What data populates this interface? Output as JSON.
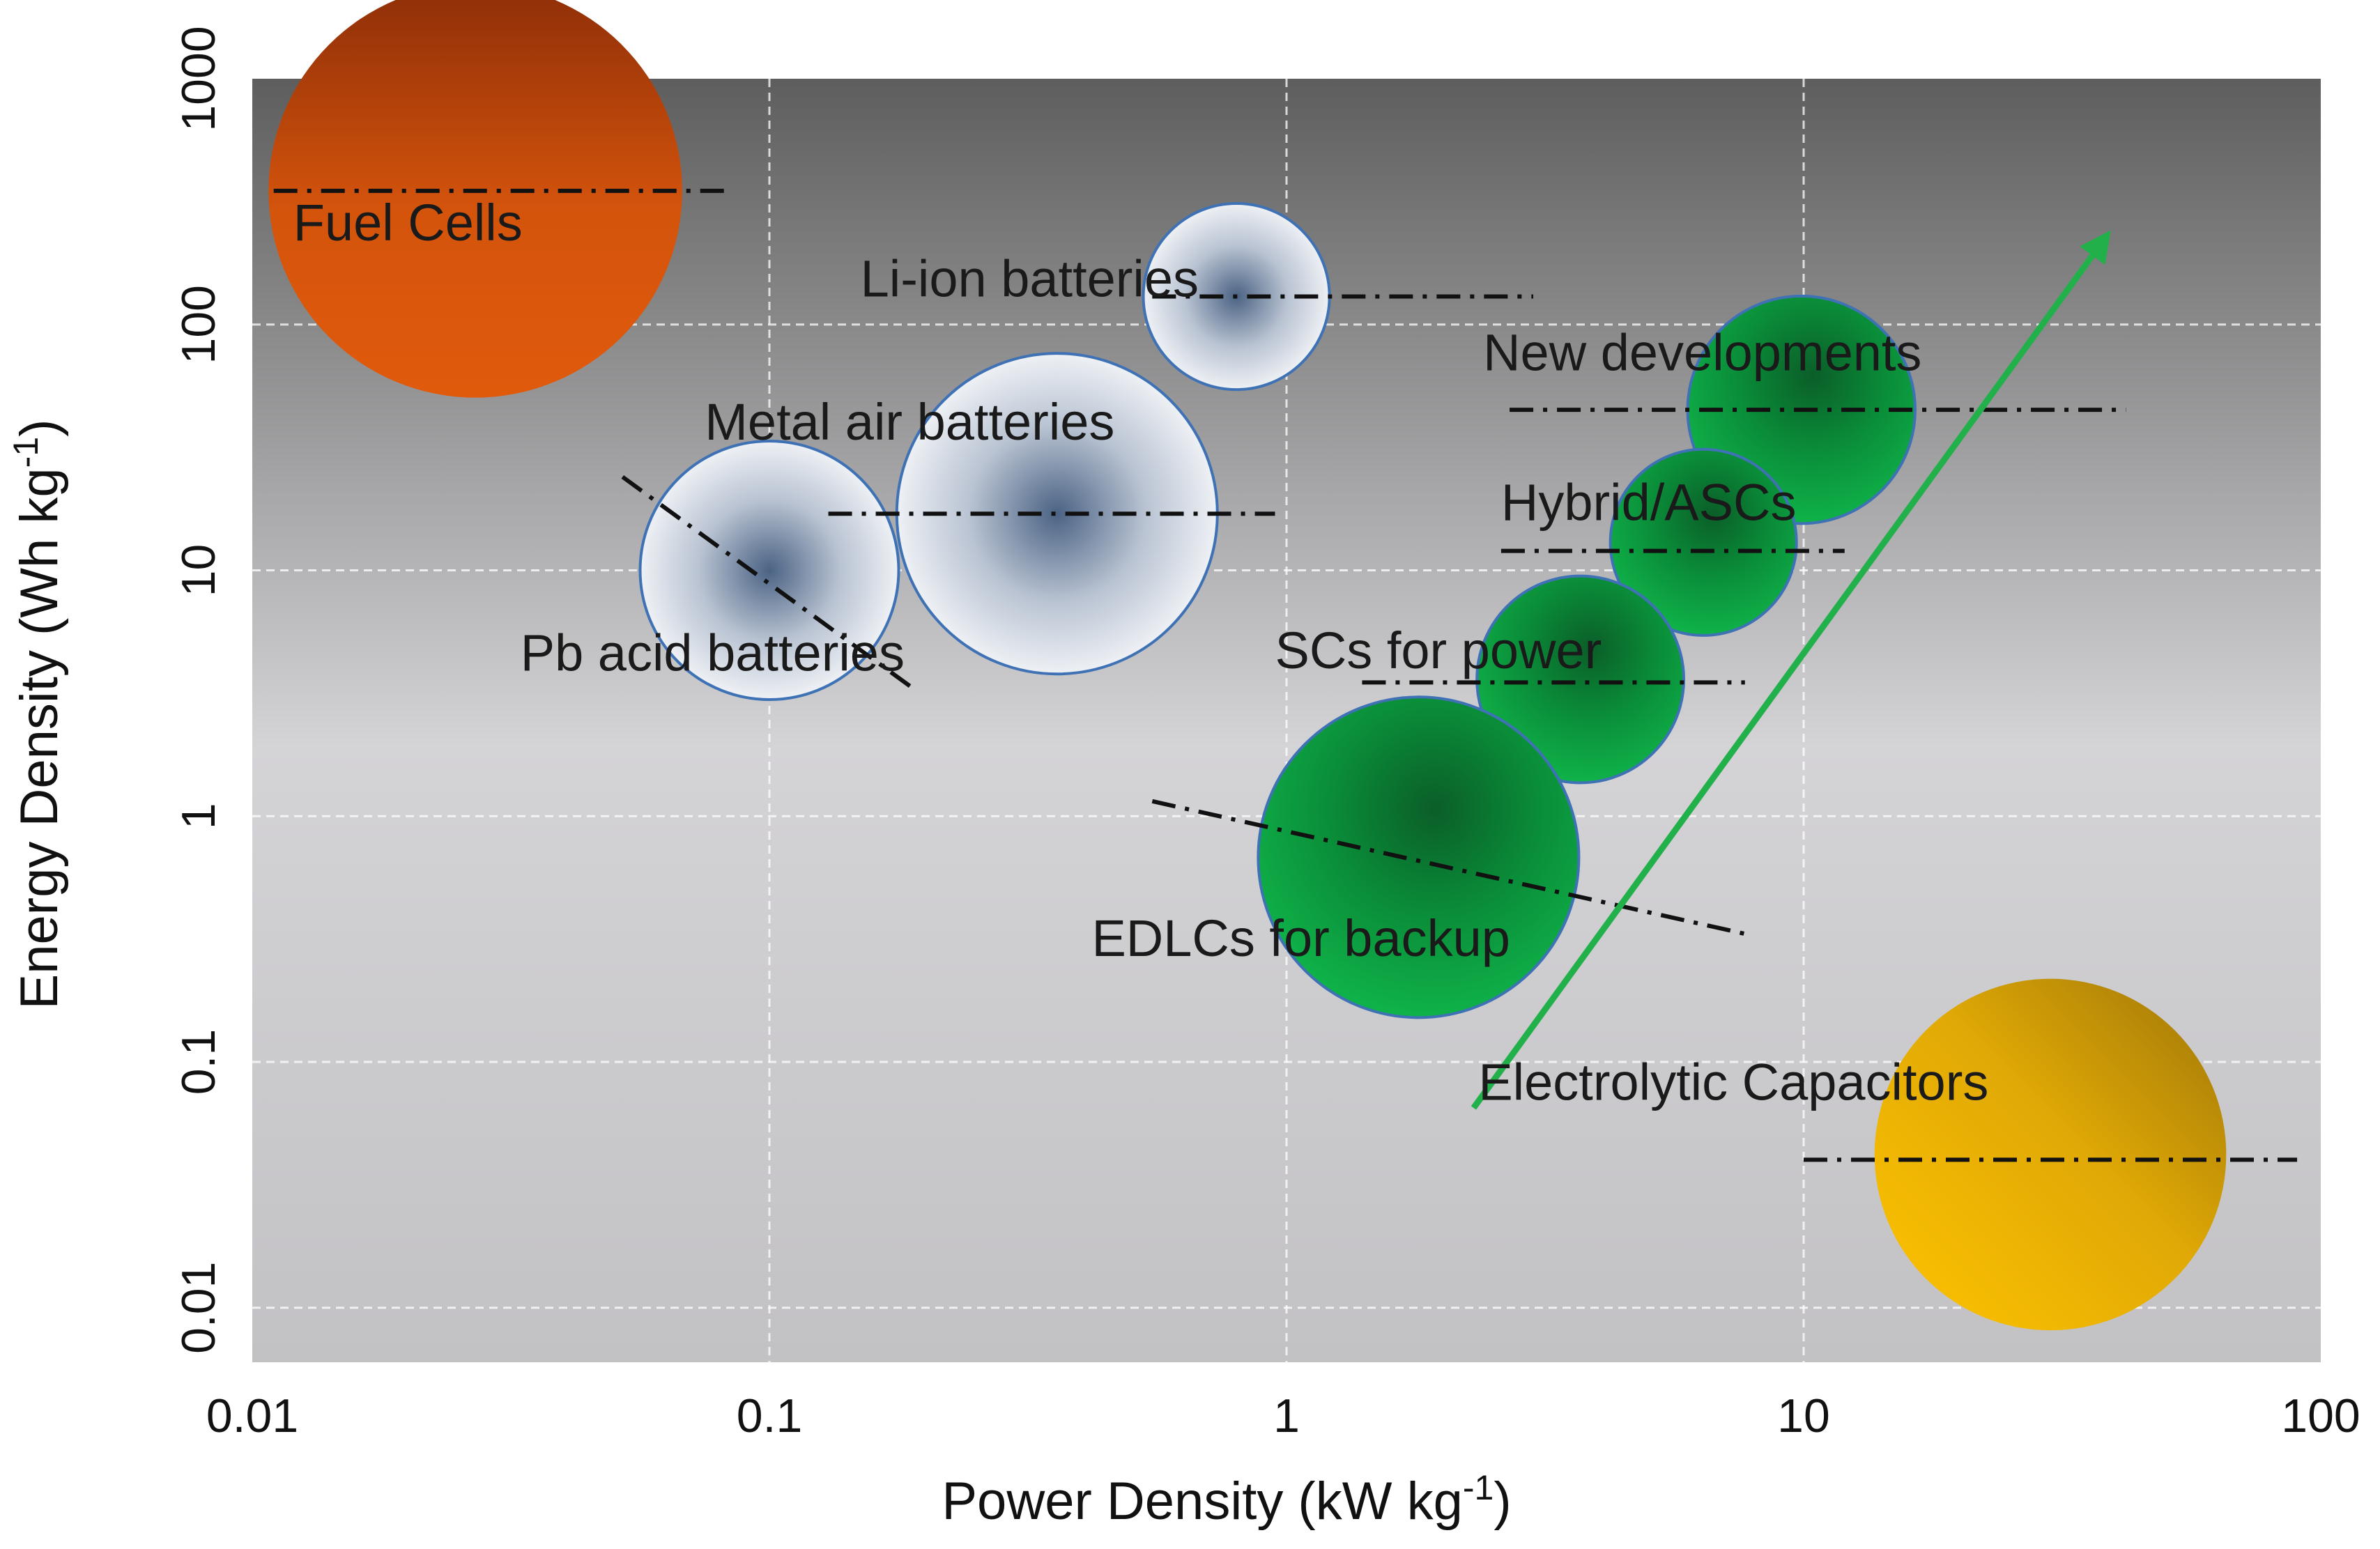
{
  "chart_data": {
    "type": "scatter",
    "title": "",
    "xlabel": "Power Density (kW kg",
    "xlabel_sup": "-1",
    "xlabel_end": ")",
    "ylabel": "Energy Density (Wh kg",
    "ylabel_sup": "-1",
    "ylabel_end": ")",
    "xscale": "log",
    "yscale": "log",
    "xlim": [
      0.01,
      100
    ],
    "ylim": [
      0.006,
      1000
    ],
    "grid": true,
    "x_ticks": [
      0.01,
      0.1,
      1,
      10,
      100
    ],
    "x_tick_labels": [
      "0.01",
      "0.1",
      "1",
      "10",
      "100"
    ],
    "y_ticks": [
      0.01,
      0.1,
      1,
      10,
      100,
      1000
    ],
    "y_tick_labels": [
      "0.01",
      "0.1",
      "1",
      "10",
      "100",
      "1000"
    ],
    "regions": [
      {
        "label": "Fuel Cells",
        "x": 0.027,
        "y": 350,
        "log_radius": 0.4,
        "color": "#cc4a0a",
        "style": "solid",
        "label_x": 0.012,
        "label_y": 220,
        "line": [
          [
            0.011,
            350
          ],
          [
            0.085,
            350
          ]
        ]
      },
      {
        "label": "Li-ion batteries",
        "x": 0.8,
        "y": 130,
        "log_radius": 0.18,
        "color": "#dde2ea",
        "style": "radial",
        "label_x": 0.15,
        "label_y": 130,
        "line": [
          [
            0.55,
            130
          ],
          [
            3.0,
            130
          ]
        ]
      },
      {
        "label": "Metal air batteries",
        "x": 0.36,
        "y": 17,
        "log_radius": 0.31,
        "color": "#dde2ea",
        "style": "radial",
        "label_x": 0.075,
        "label_y": 34,
        "line": [
          [
            0.13,
            17
          ],
          [
            0.95,
            17
          ]
        ]
      },
      {
        "label": "Pb acid batteries",
        "x": 0.1,
        "y": 10,
        "log_radius": 0.25,
        "color": "#dde2ea",
        "style": "radial",
        "label_x": 0.033,
        "label_y": 3.9,
        "line": [
          [
            0.052,
            24
          ],
          [
            0.19,
            3.3
          ]
        ]
      },
      {
        "label": "New developments",
        "x": 9.9,
        "y": 45,
        "log_radius": 0.22,
        "color": "#0aa642",
        "style": "green",
        "label_x": 2.4,
        "label_y": 65,
        "line": [
          [
            2.7,
            45
          ],
          [
            42,
            45
          ]
        ]
      },
      {
        "label": "Hybrid/ASCs",
        "x": 6.4,
        "y": 13,
        "log_radius": 0.18,
        "color": "#0aa642",
        "style": "green",
        "label_x": 2.6,
        "label_y": 16,
        "line": [
          [
            2.6,
            12
          ],
          [
            12,
            12
          ]
        ]
      },
      {
        "label": "SCs for power",
        "x": 3.7,
        "y": 3.6,
        "log_radius": 0.2,
        "color": "#0aa642",
        "style": "green",
        "label_x": 0.95,
        "label_y": 4.0,
        "line": [
          [
            1.4,
            3.5
          ],
          [
            7.7,
            3.5
          ]
        ]
      },
      {
        "label": "EDLCs for backup",
        "x": 1.8,
        "y": 0.68,
        "log_radius": 0.31,
        "color": "#0aa642",
        "style": "green",
        "label_x": 0.42,
        "label_y": 0.27,
        "line": [
          [
            0.55,
            1.15
          ],
          [
            7.8,
            0.33
          ]
        ]
      },
      {
        "label": "Electrolytic Capacitors",
        "x": 30,
        "y": 0.042,
        "log_radius": 0.34,
        "color": "#f2b705",
        "style": "gold",
        "label_x": 2.35,
        "label_y": 0.07,
        "line": [
          [
            10,
            0.04
          ],
          [
            90,
            0.04
          ]
        ]
      }
    ],
    "arrow": {
      "from": [
        2.3,
        0.065
      ],
      "to": [
        38,
        220
      ],
      "color": "#22b04a"
    }
  }
}
